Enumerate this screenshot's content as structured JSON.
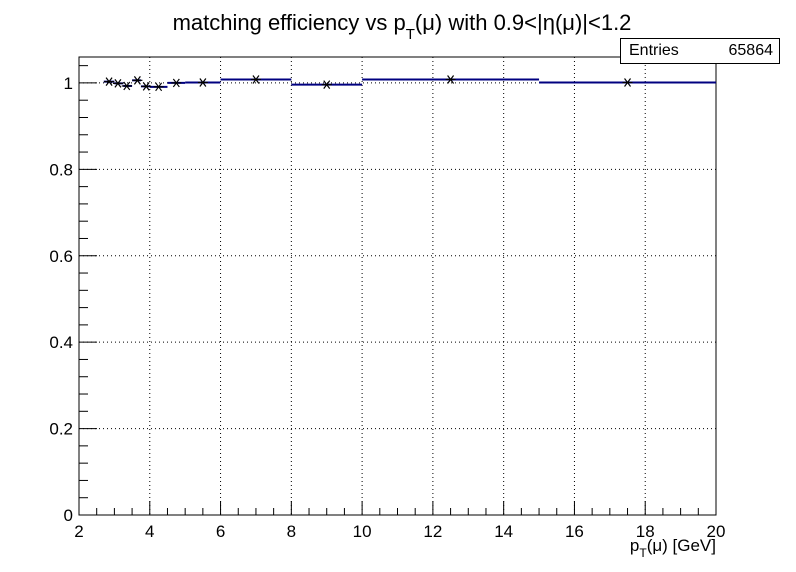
{
  "chart_data": {
    "type": "scatter",
    "title_main": "matching efficiency vs p",
    "title_sub": "T",
    "title_rest": "(μ) with 0.9<|η(μ)|<1.2",
    "xlabel_main": "p",
    "xlabel_sub": "T",
    "xlabel_rest": "(μ) [GeV]",
    "ylabel": "",
    "xlim": [
      2,
      20
    ],
    "ylim": [
      0,
      1.06
    ],
    "grid": true,
    "x_ticks": [
      "2",
      "4",
      "6",
      "8",
      "10",
      "12",
      "14",
      "16",
      "18",
      "20"
    ],
    "y_ticks": [
      "0",
      "0.2",
      "0.4",
      "0.6",
      "0.8",
      "1"
    ],
    "stats": {
      "label": "Entries",
      "value": "65864"
    },
    "line_color": "#000080",
    "bins": [
      {
        "x0": 2.7,
        "x1": 3.0,
        "y": 1.003
      },
      {
        "x0": 3.0,
        "x1": 3.25,
        "y": 0.999
      },
      {
        "x0": 3.25,
        "x1": 3.5,
        "y": 0.993
      },
      {
        "x0": 3.5,
        "x1": 3.75,
        "y": 1.006
      },
      {
        "x0": 3.75,
        "x1": 4.0,
        "y": 0.992
      },
      {
        "x0": 4.0,
        "x1": 4.5,
        "y": 0.991
      },
      {
        "x0": 4.5,
        "x1": 5.0,
        "y": 1.0
      },
      {
        "x0": 5.0,
        "x1": 6.0,
        "y": 1.001
      },
      {
        "x0": 6.0,
        "x1": 8.0,
        "y": 1.008
      },
      {
        "x0": 8.0,
        "x1": 10.0,
        "y": 0.996
      },
      {
        "x0": 10.0,
        "x1": 15.0,
        "y": 1.008
      },
      {
        "x0": 15.0,
        "x1": 20.0,
        "y": 1.001
      }
    ],
    "points": [
      {
        "x": 2.85,
        "y": 1.003
      },
      {
        "x": 3.1,
        "y": 0.999
      },
      {
        "x": 3.35,
        "y": 0.993
      },
      {
        "x": 3.65,
        "y": 1.006
      },
      {
        "x": 3.9,
        "y": 0.992
      },
      {
        "x": 4.25,
        "y": 0.991
      },
      {
        "x": 4.75,
        "y": 1.0
      },
      {
        "x": 5.5,
        "y": 1.001
      },
      {
        "x": 7.0,
        "y": 1.008
      },
      {
        "x": 9.0,
        "y": 0.996
      },
      {
        "x": 12.5,
        "y": 1.008
      },
      {
        "x": 17.5,
        "y": 1.001
      }
    ]
  }
}
